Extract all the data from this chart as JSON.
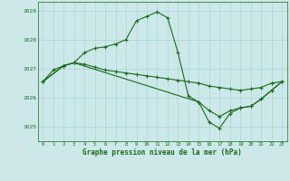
{
  "title": "Graphe pression niveau de la mer (hPa)",
  "background_color": "#cce8e8",
  "grid_color": "#aad4d4",
  "line_color": "#1a6b1a",
  "ylim": [
    1024.5,
    1029.3
  ],
  "yticks": [
    1025,
    1026,
    1027,
    1028,
    1029
  ],
  "xlim": [
    -0.5,
    23.5
  ],
  "xticks": [
    0,
    1,
    2,
    3,
    4,
    5,
    6,
    7,
    8,
    9,
    10,
    11,
    12,
    13,
    14,
    15,
    16,
    17,
    18,
    19,
    20,
    21,
    22,
    23
  ],
  "line1_x": [
    0,
    1,
    2,
    3,
    4,
    5,
    6,
    7,
    8,
    9,
    10,
    11,
    12,
    13,
    14,
    15,
    16,
    17,
    18,
    19,
    20,
    21,
    22,
    23
  ],
  "line1_y": [
    1026.55,
    1026.95,
    1027.1,
    1027.2,
    1027.55,
    1027.7,
    1027.75,
    1027.85,
    1028.0,
    1028.65,
    1028.8,
    1028.95,
    1028.75,
    1027.55,
    1026.05,
    1025.85,
    1025.15,
    1024.95,
    1025.45,
    1025.65,
    1025.7,
    1025.95,
    1026.25,
    1026.55
  ],
  "line2_x": [
    0,
    2,
    3,
    4,
    5,
    6,
    7,
    8,
    9,
    10,
    11,
    12,
    13,
    14,
    15,
    16,
    17,
    18,
    19,
    20,
    21,
    22,
    23
  ],
  "line2_y": [
    1026.55,
    1027.1,
    1027.2,
    1027.15,
    1027.05,
    1026.95,
    1026.9,
    1026.85,
    1026.8,
    1026.75,
    1026.7,
    1026.65,
    1026.6,
    1026.55,
    1026.5,
    1026.4,
    1026.35,
    1026.3,
    1026.25,
    1026.3,
    1026.35,
    1026.5,
    1026.55
  ],
  "line3_x": [
    0,
    2,
    3,
    15,
    16,
    17,
    18,
    19,
    20,
    21,
    22,
    23
  ],
  "line3_y": [
    1026.55,
    1027.1,
    1027.2,
    1025.85,
    1025.55,
    1025.35,
    1025.55,
    1025.65,
    1025.7,
    1025.95,
    1026.25,
    1026.55
  ]
}
